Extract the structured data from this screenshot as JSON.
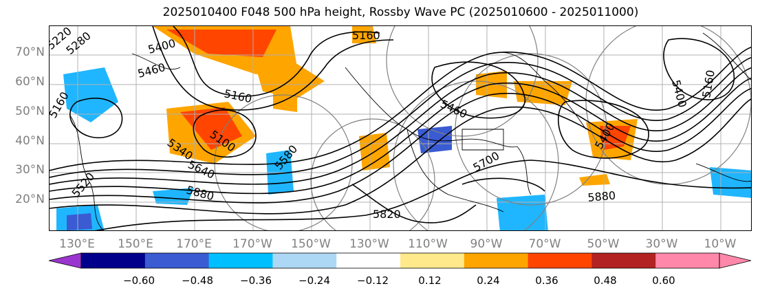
{
  "title": "2025010400 F048 500 hPa height, Rossby Wave PC (2025010600 - 2025011000)",
  "lat_labels": [
    "70°N",
    "60°N",
    "50°N",
    "40°N",
    "30°N",
    "20°N"
  ],
  "lon_labels": [
    "130°E",
    "150°E",
    "170°E",
    "170°W",
    "150°W",
    "130°W",
    "110°W",
    "90°W",
    "70°W",
    "50°W",
    "30°W",
    "10°W"
  ],
  "contour_labels": [
    "5220",
    "5280",
    "5400",
    "5460",
    "5160",
    "5160",
    "5100",
    "5340",
    "5640",
    "5880",
    "5160",
    "5820",
    "5580",
    "5400",
    "5460",
    "5700",
    "5880",
    "5160",
    "5400",
    "5520"
  ],
  "colorbar": {
    "ticks": [
      "−0.60",
      "−0.48",
      "−0.36",
      "−0.24",
      "−0.12",
      "0.12",
      "0.24",
      "0.36",
      "0.48",
      "0.60"
    ],
    "colors": [
      "#9a36cf",
      "#00008b",
      "#3a5bd2",
      "#00bfff",
      "#add8f5",
      "#ffffff",
      "#ffe98a",
      "#ffa500",
      "#ff4500",
      "#b22222",
      "#ff88aa",
      "#ff88aa"
    ],
    "extend": "both"
  },
  "colors": {
    "negative_fill": "#1fb6ff",
    "negative_strong": "#3a5bd2",
    "positive_fill": "#ffa500",
    "positive_strong": "#ff4500",
    "height_contour": "#000000",
    "circle_outline": "#808080",
    "grid": "#b0b0b0"
  }
}
